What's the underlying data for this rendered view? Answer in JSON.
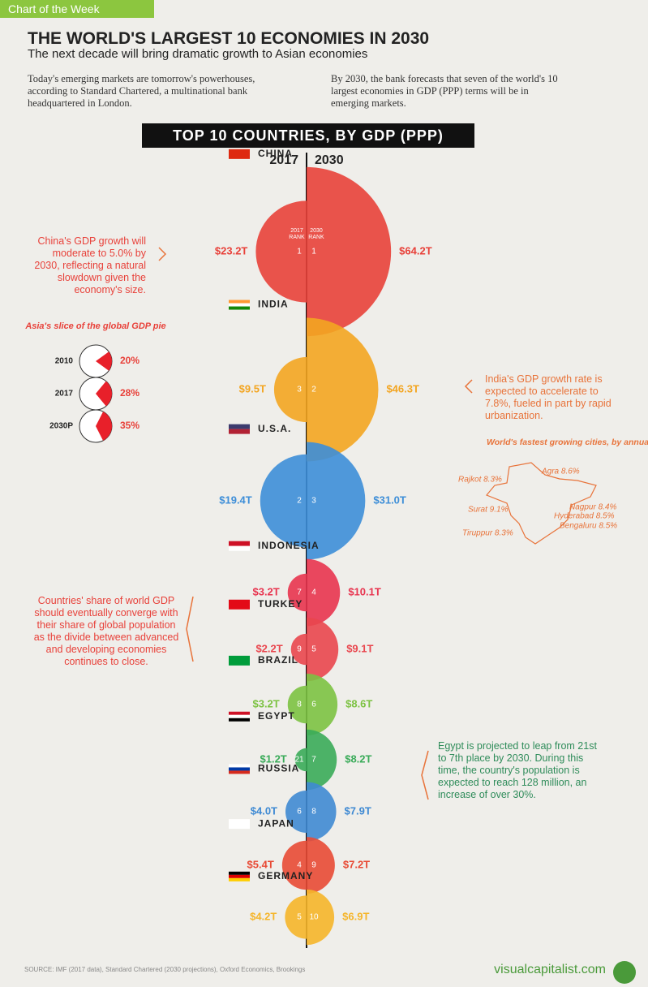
{
  "header": {
    "tag": "Chart of the Week",
    "title": "THE WORLD'S LARGEST 10 ECONOMIES IN 2030",
    "subtitle": "The next decade will bring dramatic growth to Asian economies"
  },
  "intro": [
    "Today's emerging markets are tomorrow's powerhouses, according to Standard Chartered, a multinational bank headquartered in London.",
    "By 2030, the bank forecasts that seven of the world's 10 largest economies in GDP (PPP) terms will be in emerging markets."
  ],
  "chart_data": {
    "type": "mirrored-bubble",
    "title": "TOP 10 COUNTRIES, BY GDP (PPP)",
    "rank_caption": "RANK",
    "categories": [
      "CHINA",
      "INDIA",
      "U.S.A.",
      "INDONESIA",
      "TURKEY",
      "BRAZIL",
      "EGYPT",
      "RUSSIA",
      "JAPAN",
      "GERMANY"
    ],
    "colors": [
      "#e8413a",
      "#f3a521",
      "#3d8ed8",
      "#e8344f",
      "#e9464e",
      "#7cc242",
      "#3aab59",
      "#3f8ad3",
      "#e84a35",
      "#f5b52a"
    ],
    "series": [
      {
        "name": "2017",
        "values": [
          23.2,
          9.5,
          19.4,
          3.2,
          2.2,
          3.2,
          1.2,
          4.0,
          5.4,
          4.2
        ],
        "value_labels": [
          "$23.2T",
          "$9.5T",
          "$19.4T",
          "$3.2T",
          "$2.2T",
          "$3.2T",
          "$1.2T",
          "$4.0T",
          "$5.4T",
          "$4.2T"
        ],
        "ranks": [
          1,
          3,
          2,
          7,
          9,
          8,
          21,
          6,
          4,
          5
        ]
      },
      {
        "name": "2030",
        "values": [
          64.2,
          46.3,
          31.0,
          10.1,
          9.1,
          8.6,
          8.2,
          7.9,
          7.2,
          6.9
        ],
        "value_labels": [
          "$64.2T",
          "$46.3T",
          "$31.0T",
          "$10.1T",
          "$9.1T",
          "$8.6T",
          "$8.2T",
          "$7.9T",
          "$7.2T",
          "$6.9T"
        ],
        "ranks": [
          1,
          2,
          3,
          4,
          5,
          6,
          7,
          8,
          9,
          10
        ]
      }
    ]
  },
  "notes": [
    "China's GDP growth will moderate to 5.0% by 2030, reflecting a natural slowdown given the economy's size.",
    "India's GDP growth rate is expected to accelerate to 7.8%, fueled in part by rapid urbanization.",
    "Countries' share of world GDP should eventually converge with their share of global population as the divide between advanced and developing economies continues to close.",
    "Egypt is projected to leap from 21st to 7th place by 2030. During this time, the country's population is expected to reach 128 million, an increase of over 30%."
  ],
  "pie_inset": {
    "title": "Asia's slice of the global GDP pie",
    "labels": [
      "2010",
      "2017",
      "2030P"
    ],
    "values": [
      20,
      28,
      35
    ],
    "value_labels": [
      "20%",
      "28%",
      "35%"
    ]
  },
  "cities": {
    "title": "World's fastest growing cities, by annual pop. growth",
    "items": [
      "Agra 8.6%",
      "Rajkot 8.3%",
      "Surat 9.1%",
      "Nagpur 8.4%",
      "Hyderabad 8.5%",
      "Bengaluru 8.5%",
      "Tiruppur 8.3%"
    ]
  },
  "footer": {
    "source": "SOURCE: IMF (2017 data), Standard Chartered (2030 projections), Oxford Economics, Brookings",
    "brand": "visualcapitalist.com"
  }
}
